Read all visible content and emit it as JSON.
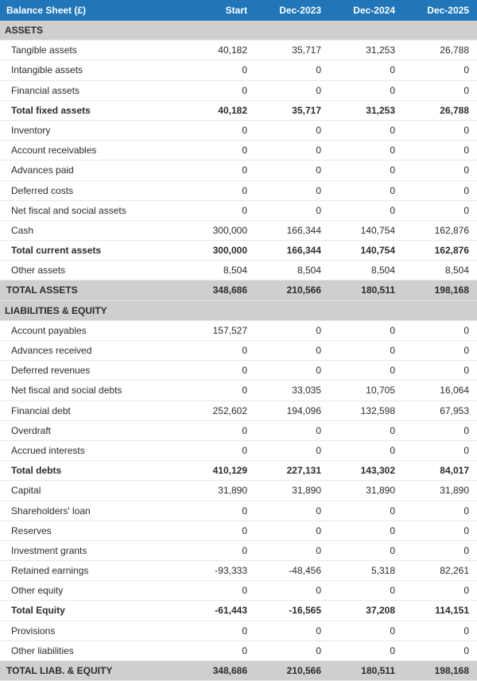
{
  "colors": {
    "header_bg": "#2176b9",
    "header_text": "#ffffff",
    "section_bg": "#cfcfcf",
    "row_border": "#e8e8e8",
    "text": "#2b2b2b"
  },
  "table": {
    "columns": [
      "Balance Sheet (£)",
      "Start",
      "Dec-2023",
      "Dec-2024",
      "Dec-2025"
    ],
    "rows": [
      {
        "type": "section",
        "label": "ASSETS"
      },
      {
        "type": "line",
        "indent": true,
        "label": "Tangible assets",
        "values": [
          "40,182",
          "35,717",
          "31,253",
          "26,788"
        ]
      },
      {
        "type": "line",
        "indent": true,
        "label": "Intangible assets",
        "values": [
          "0",
          "0",
          "0",
          "0"
        ]
      },
      {
        "type": "line",
        "indent": true,
        "label": "Financial assets",
        "values": [
          "0",
          "0",
          "0",
          "0"
        ]
      },
      {
        "type": "subtotal",
        "indent": true,
        "label": "Total fixed assets",
        "values": [
          "40,182",
          "35,717",
          "31,253",
          "26,788"
        ]
      },
      {
        "type": "line",
        "indent": true,
        "label": "Inventory",
        "values": [
          "0",
          "0",
          "0",
          "0"
        ]
      },
      {
        "type": "line",
        "indent": true,
        "label": "Account receivables",
        "values": [
          "0",
          "0",
          "0",
          "0"
        ]
      },
      {
        "type": "line",
        "indent": true,
        "label": "Advances paid",
        "values": [
          "0",
          "0",
          "0",
          "0"
        ]
      },
      {
        "type": "line",
        "indent": true,
        "label": "Deferred costs",
        "values": [
          "0",
          "0",
          "0",
          "0"
        ]
      },
      {
        "type": "line",
        "indent": true,
        "label": "Net fiscal and social assets",
        "values": [
          "0",
          "0",
          "0",
          "0"
        ]
      },
      {
        "type": "line",
        "indent": true,
        "label": "Cash",
        "values": [
          "300,000",
          "166,344",
          "140,754",
          "162,876"
        ]
      },
      {
        "type": "subtotal",
        "indent": true,
        "label": "Total current assets",
        "values": [
          "300,000",
          "166,344",
          "140,754",
          "162,876"
        ]
      },
      {
        "type": "line",
        "indent": true,
        "label": "Other assets",
        "values": [
          "8,504",
          "8,504",
          "8,504",
          "8,504"
        ]
      },
      {
        "type": "grand",
        "label": "TOTAL ASSETS",
        "values": [
          "348,686",
          "210,566",
          "180,511",
          "198,168"
        ]
      },
      {
        "type": "section",
        "label": "LIABILITIES & EQUITY"
      },
      {
        "type": "line",
        "indent": true,
        "label": "Account payables",
        "values": [
          "157,527",
          "0",
          "0",
          "0"
        ]
      },
      {
        "type": "line",
        "indent": true,
        "label": "Advances received",
        "values": [
          "0",
          "0",
          "0",
          "0"
        ]
      },
      {
        "type": "line",
        "indent": true,
        "label": "Deferred revenues",
        "values": [
          "0",
          "0",
          "0",
          "0"
        ]
      },
      {
        "type": "line",
        "indent": true,
        "label": "Net fiscal and social debts",
        "values": [
          "0",
          "33,035",
          "10,705",
          "16,064"
        ]
      },
      {
        "type": "line",
        "indent": true,
        "label": "Financial debt",
        "values": [
          "252,602",
          "194,096",
          "132,598",
          "67,953"
        ]
      },
      {
        "type": "line",
        "indent": true,
        "label": "Overdraft",
        "values": [
          "0",
          "0",
          "0",
          "0"
        ]
      },
      {
        "type": "line",
        "indent": true,
        "label": "Accrued interests",
        "values": [
          "0",
          "0",
          "0",
          "0"
        ]
      },
      {
        "type": "subtotal",
        "indent": true,
        "label": "Total debts",
        "values": [
          "410,129",
          "227,131",
          "143,302",
          "84,017"
        ]
      },
      {
        "type": "line",
        "indent": true,
        "label": "Capital",
        "values": [
          "31,890",
          "31,890",
          "31,890",
          "31,890"
        ]
      },
      {
        "type": "line",
        "indent": true,
        "label": "Shareholders' loan",
        "values": [
          "0",
          "0",
          "0",
          "0"
        ]
      },
      {
        "type": "line",
        "indent": true,
        "label": "Reserves",
        "values": [
          "0",
          "0",
          "0",
          "0"
        ]
      },
      {
        "type": "line",
        "indent": true,
        "label": "Investment grants",
        "values": [
          "0",
          "0",
          "0",
          "0"
        ]
      },
      {
        "type": "line",
        "indent": true,
        "label": "Retained earnings",
        "values": [
          "-93,333",
          "-48,456",
          "5,318",
          "82,261"
        ]
      },
      {
        "type": "line",
        "indent": true,
        "label": "Other equity",
        "values": [
          "0",
          "0",
          "0",
          "0"
        ]
      },
      {
        "type": "subtotal",
        "indent": true,
        "label": "Total Equity",
        "values": [
          "-61,443",
          "-16,565",
          "37,208",
          "114,151"
        ]
      },
      {
        "type": "line",
        "indent": true,
        "label": "Provisions",
        "values": [
          "0",
          "0",
          "0",
          "0"
        ]
      },
      {
        "type": "line",
        "indent": true,
        "label": "Other liabilities",
        "values": [
          "0",
          "0",
          "0",
          "0"
        ]
      },
      {
        "type": "grand",
        "label": "TOTAL LIAB. & EQUITY",
        "values": [
          "348,686",
          "210,566",
          "180,511",
          "198,168"
        ]
      }
    ]
  }
}
